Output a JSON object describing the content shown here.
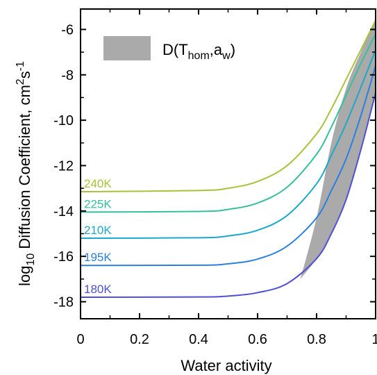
{
  "chart_data": {
    "type": "line",
    "xlabel": "Water activity",
    "ylabel": {
      "prefix": "log",
      "prefix_sub": "10",
      "text": " Diffusion Coefficient, cm",
      "sup1": "2",
      "mid": "s",
      "sup2": "-1"
    },
    "xlim": [
      0,
      1
    ],
    "ylim": [
      -18.75,
      -5.1
    ],
    "x_ticks": [
      0,
      0.2,
      0.4,
      0.6,
      0.8,
      1
    ],
    "x_tick_labels": [
      "0",
      "0.2",
      "0.4",
      "0.6",
      "0.8",
      "1"
    ],
    "y_ticks": [
      -18,
      -16,
      -14,
      -12,
      -10,
      -8,
      -6
    ],
    "y_tick_labels": [
      "-18",
      "-16",
      "-14",
      "-12",
      "-10",
      "-8",
      "-6"
    ],
    "grid": false,
    "legend": {
      "placement": "top-left",
      "swatch_color": "#aaaaaa",
      "label_main": "D(T",
      "label_sub1": "hom",
      "label_mid": ",a",
      "label_sub2": "w",
      "label_end": ")"
    },
    "series": [
      {
        "name": "240K",
        "color": "#a8c23a",
        "x": [
          0,
          0.4,
          0.5,
          0.6,
          0.7,
          0.8,
          0.85,
          0.9,
          0.95,
          1.0
        ],
        "y": [
          -13.15,
          -13.1,
          -13.0,
          -12.7,
          -12.0,
          -10.6,
          -9.5,
          -8.2,
          -6.9,
          -5.6
        ]
      },
      {
        "name": "225K",
        "color": "#35c09a",
        "x": [
          0,
          0.4,
          0.5,
          0.6,
          0.7,
          0.8,
          0.85,
          0.9,
          0.95,
          1.0
        ],
        "y": [
          -14.05,
          -14.02,
          -13.93,
          -13.65,
          -12.95,
          -11.5,
          -10.3,
          -8.9,
          -7.5,
          -6.2
        ]
      },
      {
        "name": "210K",
        "color": "#1aa8cc",
        "x": [
          0,
          0.4,
          0.5,
          0.6,
          0.7,
          0.8,
          0.85,
          0.9,
          0.95,
          1.0
        ],
        "y": [
          -15.2,
          -15.18,
          -15.1,
          -14.85,
          -14.2,
          -12.8,
          -11.55,
          -10.15,
          -8.55,
          -6.9
        ]
      },
      {
        "name": "195K",
        "color": "#2b7fe0",
        "x": [
          0,
          0.4,
          0.5,
          0.6,
          0.7,
          0.8,
          0.85,
          0.9,
          0.95,
          1.0
        ],
        "y": [
          -16.4,
          -16.39,
          -16.33,
          -16.12,
          -15.55,
          -14.3,
          -13.1,
          -11.7,
          -9.8,
          -7.6
        ]
      },
      {
        "name": "180K",
        "color": "#4f4fd6",
        "x": [
          0,
          0.4,
          0.5,
          0.6,
          0.7,
          0.8,
          0.85,
          0.9,
          0.95,
          1.0
        ],
        "y": [
          -17.8,
          -17.79,
          -17.75,
          -17.6,
          -17.2,
          -16.1,
          -15.0,
          -13.5,
          -11.3,
          -8.8
        ]
      }
    ],
    "band": {
      "name": "D(Thom,aw)",
      "color": "#aaaaaa",
      "upper": {
        "x": [
          0.745,
          0.8,
          0.85,
          0.9,
          0.95,
          1.0
        ],
        "y": [
          -17.0,
          -14.3,
          -11.0,
          -8.6,
          -7.0,
          -5.6
        ]
      },
      "lower": {
        "x": [
          0.745,
          0.8,
          0.85,
          0.9,
          0.95,
          1.0
        ],
        "y": [
          -17.0,
          -16.1,
          -15.0,
          -13.5,
          -11.3,
          -8.8
        ]
      }
    }
  }
}
